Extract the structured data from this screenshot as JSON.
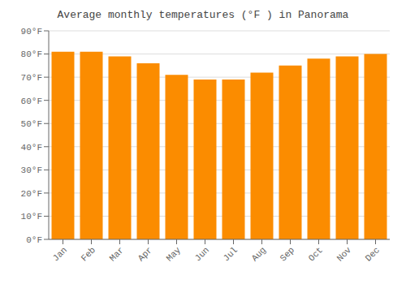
{
  "chart_data": {
    "type": "bar",
    "title": "Average monthly temperatures (°F ) in Panorama",
    "categories": [
      "Jan",
      "Feb",
      "Mar",
      "Apr",
      "May",
      "Jun",
      "Jul",
      "Aug",
      "Sep",
      "Oct",
      "Nov",
      "Dec"
    ],
    "values": [
      81,
      81,
      79,
      76,
      71,
      69,
      69,
      72,
      75,
      78,
      79,
      80
    ],
    "color": "#FB8C00",
    "ylim": [
      0,
      90
    ],
    "yticks": [
      {
        "value": 0,
        "label": "0°F"
      },
      {
        "value": 10,
        "label": "10°F"
      },
      {
        "value": 20,
        "label": "20°F"
      },
      {
        "value": 30,
        "label": "30°F"
      },
      {
        "value": 40,
        "label": "40°F"
      },
      {
        "value": 50,
        "label": "50°F"
      },
      {
        "value": 60,
        "label": "60°F"
      },
      {
        "value": 70,
        "label": "70°F"
      },
      {
        "value": 80,
        "label": "80°F"
      },
      {
        "value": 90,
        "label": "90°F"
      }
    ],
    "grid": true
  }
}
